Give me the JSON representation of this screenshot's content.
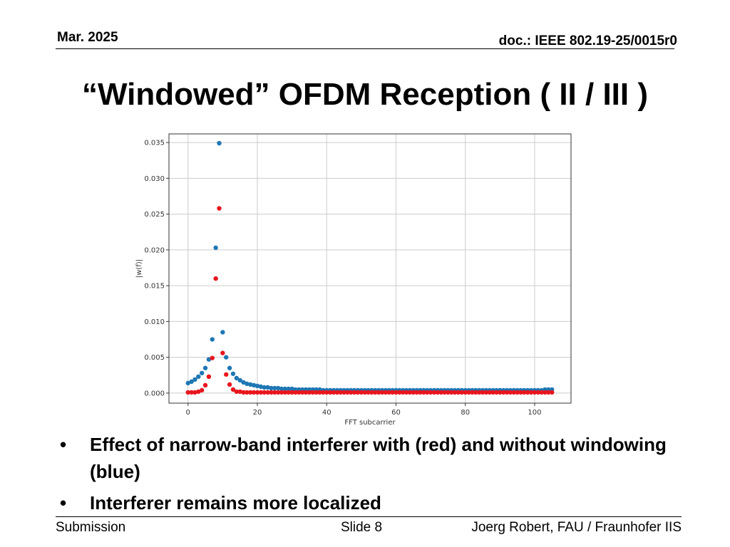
{
  "header": {
    "date": "Mar. 2025",
    "doc": "doc.: IEEE 802.19-25/0015r0"
  },
  "title": "“Windowed” OFDM Reception ( II / III )",
  "bullets": [
    "Effect of narrow-band interferer with (red) and without windowing (blue)",
    "Interferer remains more localized"
  ],
  "bullet_glyph": "•",
  "footer": {
    "left": "Submission",
    "center": "Slide 8",
    "right": "Joerg Robert, FAU / Fraunhofer IIS"
  },
  "colors": {
    "blue": "#1f77b4",
    "red": "#e8161e",
    "grid": "#cccccc"
  },
  "chart_data": {
    "type": "scatter",
    "xlabel": "FFT subcarrier",
    "ylabel": "|w(f)|",
    "xlim": [
      -5.5,
      110.5
    ],
    "ylim": [
      -0.0014,
      0.0362
    ],
    "xticks": [
      0,
      20,
      40,
      60,
      80,
      100
    ],
    "xtick_labels": [
      "0",
      "20",
      "40",
      "60",
      "80",
      "100"
    ],
    "yticks": [
      0.0,
      0.005,
      0.01,
      0.015,
      0.02,
      0.025,
      0.03,
      0.035
    ],
    "ytick_labels": [
      "0.000",
      "0.005",
      "0.010",
      "0.015",
      "0.020",
      "0.025",
      "0.030",
      "0.035"
    ],
    "grid": true,
    "series": [
      {
        "color": "#1f77b4",
        "x": [
          0,
          1,
          2,
          3,
          4,
          5,
          6,
          7,
          8,
          9,
          10,
          11,
          12,
          13,
          14,
          15,
          16,
          17,
          18,
          19,
          20,
          21,
          22,
          23,
          24,
          25,
          26,
          27,
          28,
          29,
          30,
          31,
          32,
          33,
          34,
          35,
          36,
          37,
          38,
          39,
          40,
          41,
          42,
          43,
          44,
          45,
          46,
          47,
          48,
          49,
          50,
          51,
          52,
          53,
          54,
          55,
          56,
          57,
          58,
          59,
          60,
          61,
          62,
          63,
          64,
          65,
          66,
          67,
          68,
          69,
          70,
          71,
          72,
          73,
          74,
          75,
          76,
          77,
          78,
          79,
          80,
          81,
          82,
          83,
          84,
          85,
          86,
          87,
          88,
          89,
          90,
          91,
          92,
          93,
          94,
          95,
          96,
          97,
          98,
          99,
          100,
          101,
          102,
          103,
          104,
          105
        ],
        "y": [
          0.0014,
          0.0016,
          0.0019,
          0.0023,
          0.0028,
          0.0035,
          0.0047,
          0.0075,
          0.0203,
          0.0349,
          0.0085,
          0.005,
          0.0035,
          0.0027,
          0.0021,
          0.0018,
          0.0015,
          0.0013,
          0.0012,
          0.0011,
          0.001,
          0.0009,
          0.0008,
          0.0008,
          0.0007,
          0.0007,
          0.0007,
          0.0006,
          0.0006,
          0.0006,
          0.0006,
          0.0005,
          0.0005,
          0.0005,
          0.0005,
          0.0005,
          0.0005,
          0.0005,
          0.0005,
          0.0004,
          0.0004,
          0.0004,
          0.0004,
          0.0004,
          0.0004,
          0.0004,
          0.0004,
          0.0004,
          0.0004,
          0.0004,
          0.0004,
          0.0004,
          0.0004,
          0.0004,
          0.0004,
          0.0004,
          0.0004,
          0.0004,
          0.0004,
          0.0004,
          0.0004,
          0.0004,
          0.0004,
          0.0004,
          0.0004,
          0.0004,
          0.0004,
          0.0004,
          0.0004,
          0.0004,
          0.0004,
          0.0004,
          0.0004,
          0.0004,
          0.0004,
          0.0004,
          0.0004,
          0.0004,
          0.0004,
          0.0004,
          0.0004,
          0.0004,
          0.0004,
          0.0004,
          0.0004,
          0.0004,
          0.0004,
          0.0004,
          0.0004,
          0.0004,
          0.0004,
          0.0004,
          0.0004,
          0.0004,
          0.0004,
          0.0004,
          0.0004,
          0.0004,
          0.0004,
          0.0004,
          0.0004,
          0.0004,
          0.0004,
          0.0005,
          0.0005,
          0.0005
        ]
      },
      {
        "color": "#e8161e",
        "x": [
          0,
          1,
          2,
          3,
          4,
          5,
          6,
          7,
          8,
          9,
          10,
          11,
          12,
          13,
          14,
          15,
          16,
          17,
          18,
          19,
          20,
          21,
          22,
          23,
          24,
          25,
          26,
          27,
          28,
          29,
          30,
          31,
          32,
          33,
          34,
          35,
          36,
          37,
          38,
          39,
          40,
          41,
          42,
          43,
          44,
          45,
          46,
          47,
          48,
          49,
          50,
          51,
          52,
          53,
          54,
          55,
          56,
          57,
          58,
          59,
          60,
          61,
          62,
          63,
          64,
          65,
          66,
          67,
          68,
          69,
          70,
          71,
          72,
          73,
          74,
          75,
          76,
          77,
          78,
          79,
          80,
          81,
          82,
          83,
          84,
          85,
          86,
          87,
          88,
          89,
          90,
          91,
          92,
          93,
          94,
          95,
          96,
          97,
          98,
          99,
          100,
          101,
          102,
          103,
          104,
          105
        ],
        "y": [
          0.0001,
          0.0001,
          0.0001,
          0.0002,
          0.0004,
          0.0011,
          0.0023,
          0.0049,
          0.016,
          0.0258,
          0.0056,
          0.0026,
          0.0012,
          0.0005,
          0.0002,
          0.0002,
          0.0001,
          0.0001,
          0.0001,
          0.0001,
          0.0001,
          0.0001,
          0.0001,
          0.0001,
          0.0001,
          0.0001,
          0.0001,
          0.0001,
          0.0001,
          0.0001,
          0.0001,
          0.0001,
          0.0001,
          0.0001,
          0.0001,
          0.0001,
          0.0001,
          0.0001,
          0.0001,
          0.0001,
          0.0001,
          0.0001,
          0.0001,
          0.0001,
          0.0001,
          0.0001,
          0.0001,
          0.0001,
          0.0001,
          0.0001,
          0.0001,
          0.0001,
          0.0001,
          0.0001,
          0.0001,
          0.0001,
          0.0001,
          0.0001,
          0.0001,
          0.0001,
          0.0001,
          0.0001,
          0.0001,
          0.0001,
          0.0001,
          0.0001,
          0.0001,
          0.0001,
          0.0001,
          0.0001,
          0.0001,
          0.0001,
          0.0001,
          0.0001,
          0.0001,
          0.0001,
          0.0001,
          0.0001,
          0.0001,
          0.0001,
          0.0001,
          0.0001,
          0.0001,
          0.0001,
          0.0001,
          0.0001,
          0.0001,
          0.0001,
          0.0001,
          0.0001,
          0.0001,
          0.0001,
          0.0001,
          0.0001,
          0.0001,
          0.0001,
          0.0001,
          0.0001,
          0.0001,
          0.0001,
          0.0001,
          0.0001,
          0.0001,
          0.0001,
          0.0001,
          0.0001
        ]
      }
    ]
  }
}
